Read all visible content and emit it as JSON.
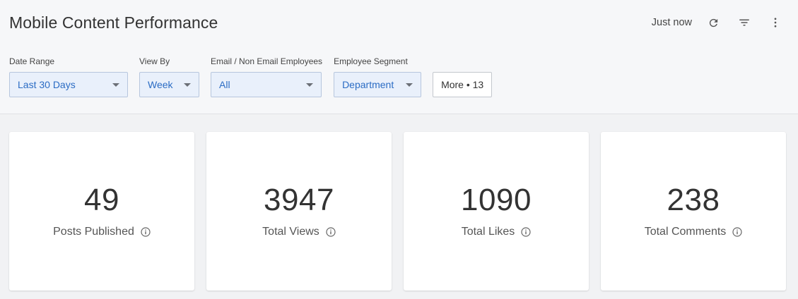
{
  "header": {
    "title": "Mobile Content Performance",
    "last_updated": "Just now",
    "icons": {
      "refresh": "refresh-icon",
      "filter": "filter-icon",
      "more": "more-vertical-icon"
    }
  },
  "filters": [
    {
      "label": "Date Range",
      "value": "Last 30 Days"
    },
    {
      "label": "View By",
      "value": "Week"
    },
    {
      "label": "Email / Non Email Employees",
      "value": "All"
    },
    {
      "label": "Employee Segment",
      "value": "Department"
    }
  ],
  "more_filters_label": "More • 13",
  "colors": {
    "accent": "#2b6cc4",
    "select_bg": "#e9f0fb",
    "page_bg": "#f1f2f4"
  },
  "metrics": [
    {
      "value": "49",
      "label": "Posts Published",
      "icon": "info-icon"
    },
    {
      "value": "3947",
      "label": "Total Views",
      "icon": "info-icon"
    },
    {
      "value": "1090",
      "label": "Total Likes",
      "icon": "info-icon"
    },
    {
      "value": "238",
      "label": "Total Comments",
      "icon": "info-icon"
    }
  ]
}
